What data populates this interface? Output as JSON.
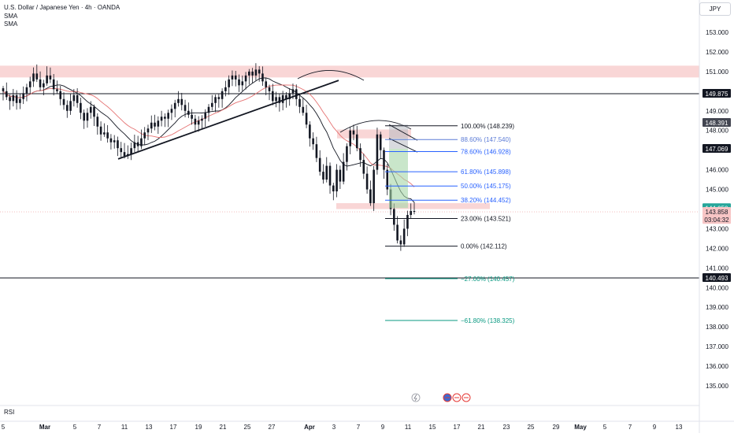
{
  "header": {
    "title": "U.S. Dollar / Japanese Yen · 4h · OANDA",
    "indicators": [
      "SMA",
      "SMA"
    ],
    "currency": "JPY"
  },
  "rsi_label": "RSI",
  "chart_data": {
    "type": "candlestick",
    "symbol": "USDJPY",
    "interval": "4h",
    "ylim": [
      134.5,
      153.5
    ],
    "y_ticks": [
      "135.000",
      "136.000",
      "137.000",
      "138.000",
      "139.000",
      "140.000",
      "141.000",
      "142.000",
      "143.000",
      "144.000",
      "145.000",
      "146.000",
      "147.000",
      "148.000",
      "149.000",
      "150.000",
      "151.000",
      "152.000",
      "153.000"
    ],
    "x_ticks": [
      "5",
      "Mar",
      "5",
      "7",
      "11",
      "13",
      "17",
      "19",
      "21",
      "25",
      "27",
      "Apr",
      "3",
      "7",
      "9",
      "11",
      "15",
      "17",
      "21",
      "23",
      "25",
      "29",
      "May",
      "5",
      "7",
      "9",
      "13"
    ],
    "horizontal_lines": [
      149.875,
      140.493
    ],
    "resistance_zones": [
      [
        150.7,
        151.3
      ],
      [
        147.6,
        148.05
      ],
      [
        144.0,
        144.3
      ]
    ],
    "fibonacci": {
      "levels": [
        {
          "label": "100.00% (148.239)",
          "value": 148.239,
          "color": "#131722"
        },
        {
          "label": "88.60% (147.540)",
          "value": 147.54,
          "color": "#5b7bd6"
        },
        {
          "label": "78.60% (146.928)",
          "value": 146.928,
          "color": "#2962ff"
        },
        {
          "label": "61.80% (145.898)",
          "value": 145.898,
          "color": "#2962ff"
        },
        {
          "label": "50.00% (145.175)",
          "value": 145.175,
          "color": "#2962ff"
        },
        {
          "label": "38.20% (144.452)",
          "value": 144.452,
          "color": "#2962ff"
        },
        {
          "label": "23.00% (143.521)",
          "value": 143.521,
          "color": "#131722"
        },
        {
          "label": "0.00% (142.112)",
          "value": 142.112,
          "color": "#131722"
        },
        {
          "label": "−27.00% (140.457)",
          "value": 140.457,
          "color": "#089981"
        },
        {
          "label": "−61.80% (138.325)",
          "value": 138.325,
          "color": "#089981"
        }
      ]
    },
    "price_labels": [
      {
        "text": "149.875",
        "value": 149.875,
        "bg": "#131722",
        "fg": "#ffffff"
      },
      {
        "text": "148.391",
        "value": 148.391,
        "bg": "#434651",
        "fg": "#ffffff"
      },
      {
        "text": "147.069",
        "value": 147.069,
        "bg": "#131722",
        "fg": "#ffffff"
      },
      {
        "text": "144.050",
        "value": 144.05,
        "bg": "#26a69a",
        "fg": "#ffffff"
      },
      {
        "text": "143.858",
        "value": 143.858,
        "bg": "#f7c5c5",
        "fg": "#131722"
      },
      {
        "text": "03:04:32",
        "value": 143.45,
        "bg": "#f7c5c5",
        "fg": "#131722"
      },
      {
        "text": "140.493",
        "value": 140.493,
        "bg": "#131722",
        "fg": "#ffffff"
      }
    ],
    "closes": [
      150.0,
      149.7,
      149.5,
      149.8,
      149.4,
      149.6,
      149.9,
      150.2,
      150.5,
      150.9,
      150.6,
      150.2,
      150.4,
      150.8,
      150.6,
      150.1,
      150.0,
      149.6,
      149.3,
      149.0,
      149.5,
      149.8,
      149.4,
      148.9,
      148.5,
      148.9,
      149.2,
      148.7,
      148.2,
      147.8,
      147.9,
      147.6,
      147.4,
      147.5,
      147.1,
      146.9,
      146.7,
      146.8,
      147.1,
      147.4,
      147.2,
      147.6,
      147.9,
      148.1,
      148.4,
      148.2,
      148.5,
      148.7,
      148.6,
      148.9,
      149.1,
      149.4,
      149.6,
      149.3,
      149.0,
      148.8,
      148.6,
      148.3,
      148.5,
      148.6,
      148.9,
      149.2,
      149.4,
      149.7,
      149.6,
      150.0,
      150.2,
      150.6,
      150.8,
      150.6,
      150.3,
      150.5,
      150.8,
      151.0,
      150.8,
      151.1,
      150.9,
      150.5,
      150.2,
      150.0,
      149.5,
      149.7,
      149.4,
      149.8,
      149.6,
      149.9,
      150.1,
      149.6,
      149.2,
      148.9,
      148.3,
      147.6,
      147.3,
      146.6,
      145.9,
      145.5,
      146.2,
      145.2,
      144.9,
      146.0,
      145.4,
      146.4,
      147.2,
      148.0,
      147.8,
      147.1,
      146.5,
      145.8,
      145.0,
      144.3,
      146.0,
      147.8,
      147.0,
      146.0,
      145.0,
      144.0,
      143.2,
      142.4,
      142.2,
      143.0,
      143.7,
      143.9,
      143.858
    ]
  }
}
